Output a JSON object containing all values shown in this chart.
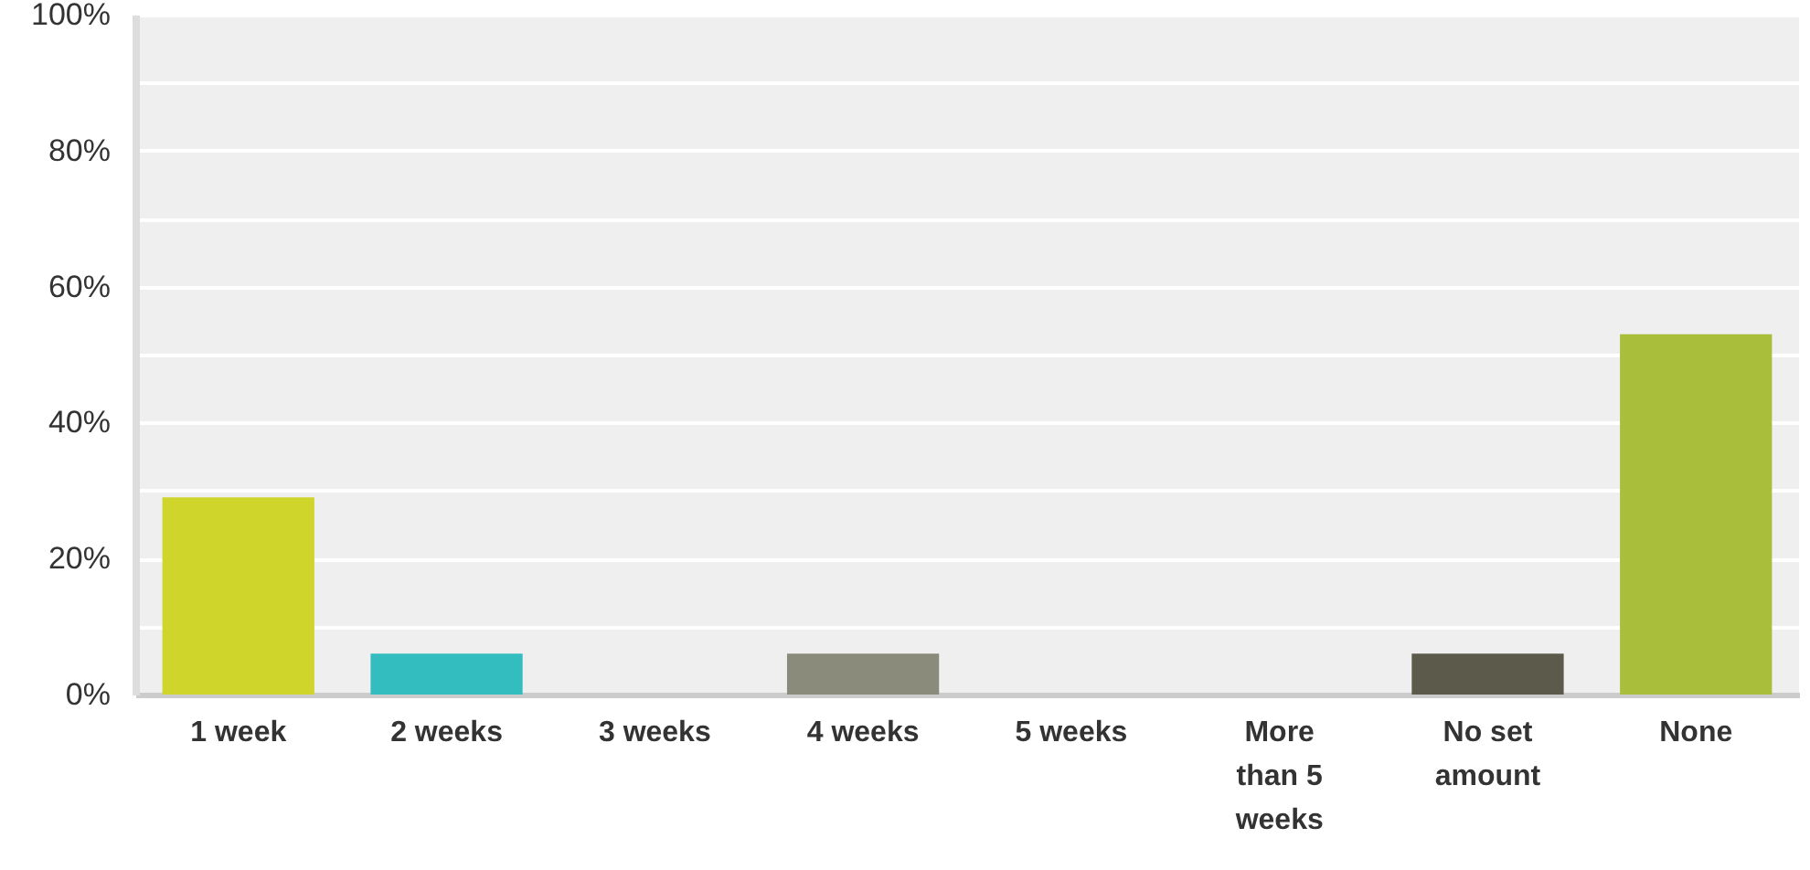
{
  "chart_data": {
    "type": "bar",
    "categories": [
      "1 week",
      "2 weeks",
      "3 weeks",
      "4 weeks",
      "5 weeks",
      "More than 5 weeks",
      "No set amount",
      "None"
    ],
    "values": [
      29,
      6,
      0,
      6,
      0,
      0,
      6,
      53
    ],
    "colors": [
      "#cfd52a",
      "#33bdbf",
      null,
      "#8a8b7a",
      null,
      null,
      "#5b5a4b",
      "#a9be3a"
    ],
    "ylim": [
      0,
      100
    ],
    "yticks": [
      {
        "value": 0,
        "label": "0%"
      },
      {
        "value": 10,
        "label": null
      },
      {
        "value": 20,
        "label": "20%"
      },
      {
        "value": 30,
        "label": null
      },
      {
        "value": 40,
        "label": "40%"
      },
      {
        "value": 50,
        "label": null
      },
      {
        "value": 60,
        "label": "60%"
      },
      {
        "value": 70,
        "label": null
      },
      {
        "value": 80,
        "label": "80%"
      },
      {
        "value": 90,
        "label": null
      },
      {
        "value": 100,
        "label": "100%"
      }
    ],
    "grid": true
  }
}
